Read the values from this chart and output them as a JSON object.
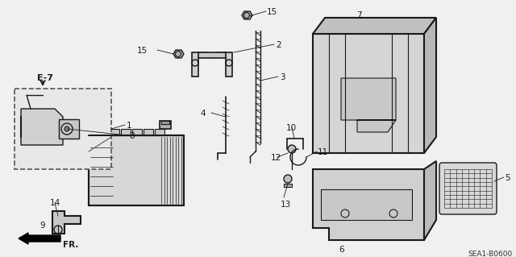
{
  "bg_color": "#f0f0f0",
  "line_color": "#1a1a1a",
  "diagram_code": "SEA1-B0600",
  "fig_width": 6.4,
  "fig_height": 3.19,
  "dpi": 100
}
